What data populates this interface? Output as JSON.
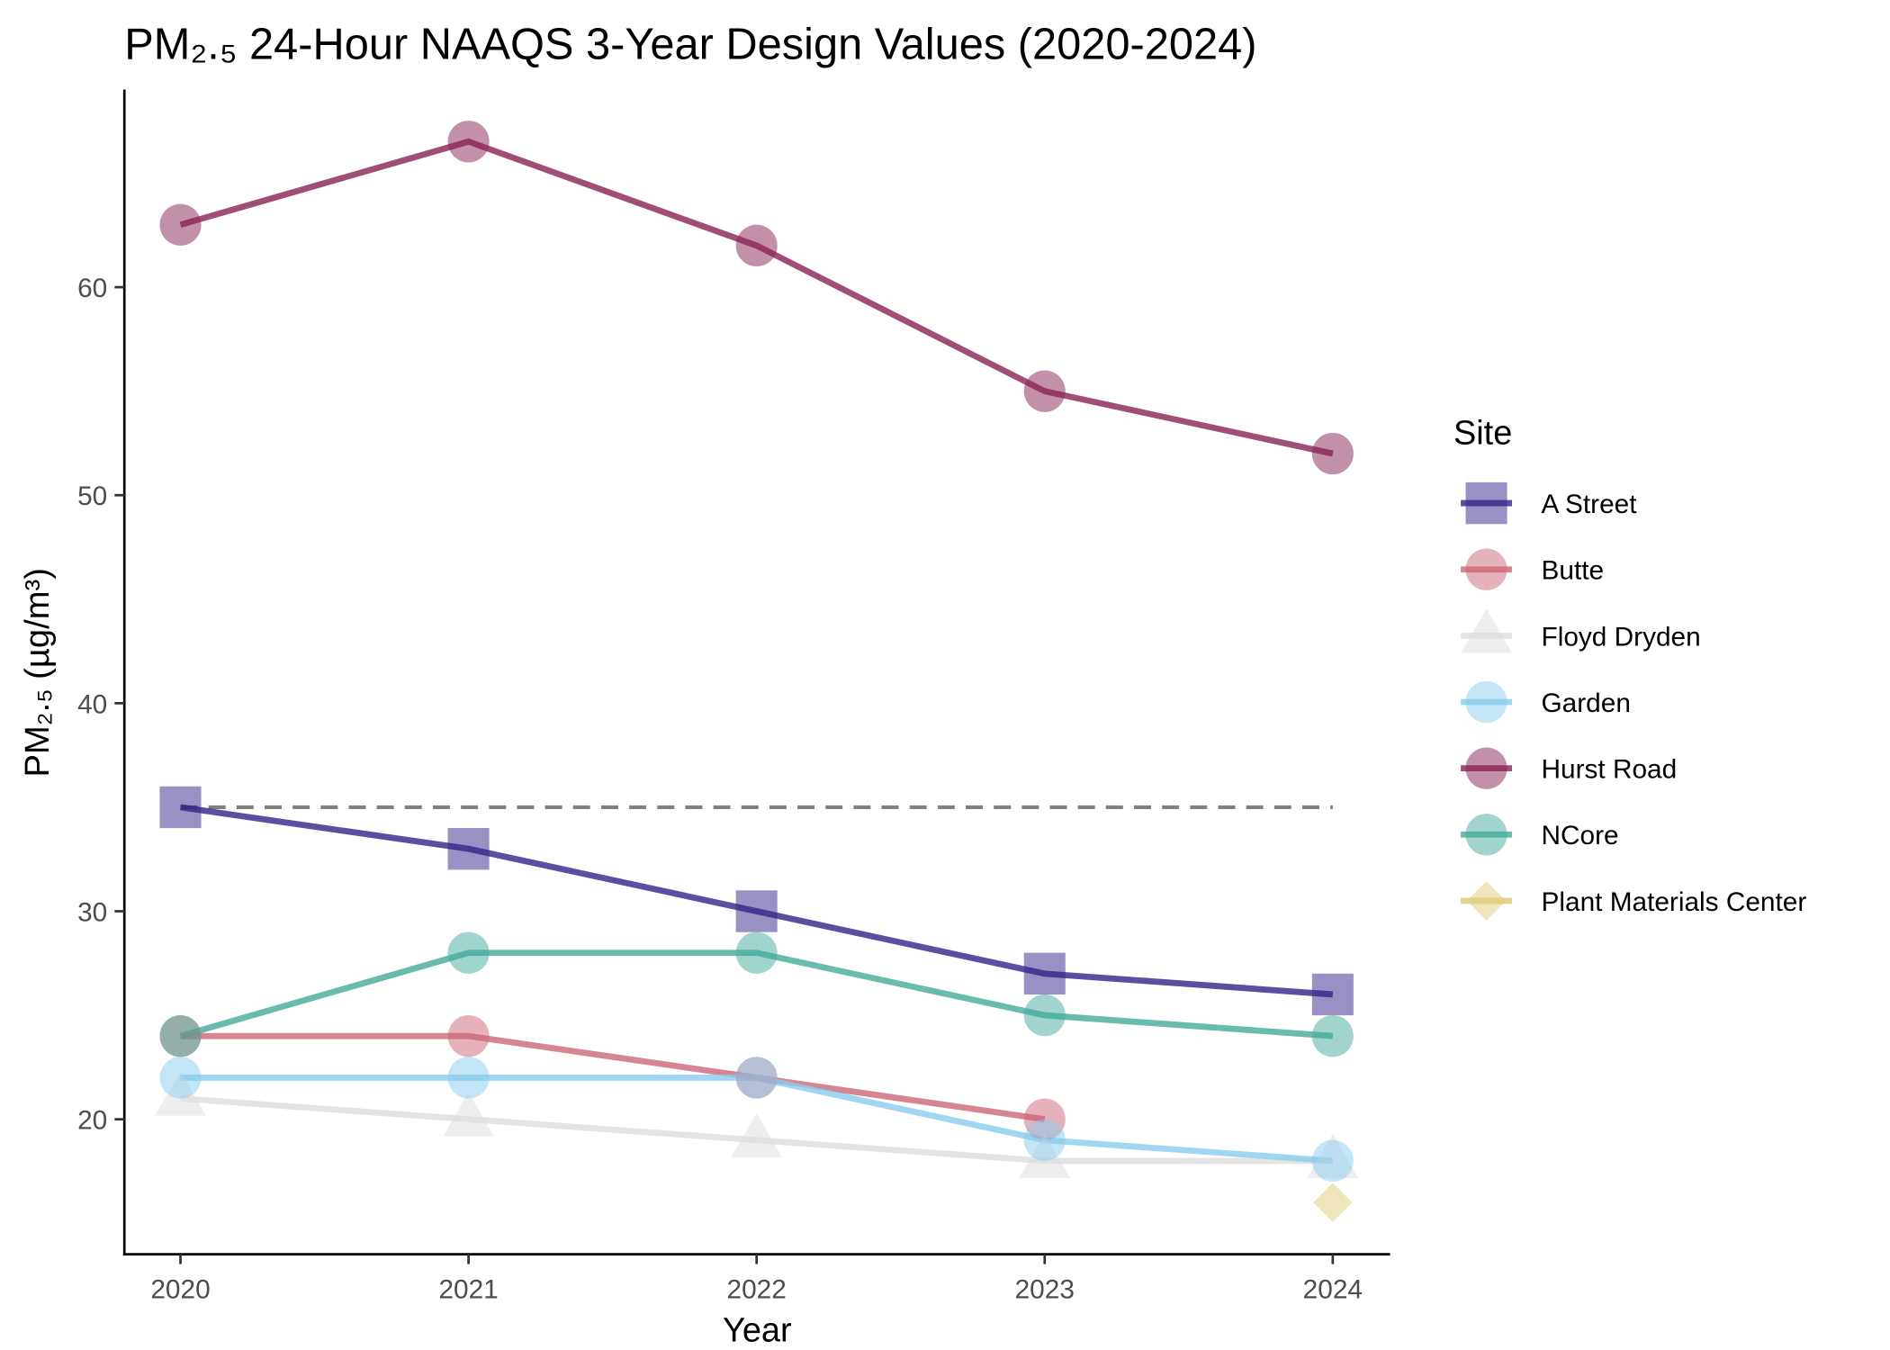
{
  "chart_data": {
    "type": "line",
    "title": "PM₂.₅ 24-Hour NAAQS 3-Year Design Values (2020-2024)",
    "xlabel": "Year",
    "ylabel": "PM₂.₅ (µg/m³)",
    "x": [
      2020,
      2021,
      2022,
      2023,
      2024
    ],
    "xticks": [
      "2020",
      "2021",
      "2022",
      "2023",
      "2024"
    ],
    "yticks": [
      20,
      30,
      40,
      50,
      60
    ],
    "ylim": [
      13.5,
      69.5
    ],
    "grid": false,
    "legend": {
      "title": "Site",
      "placement": "right"
    },
    "reference_line": {
      "y": 35,
      "style": "dashed",
      "color": "#808080"
    },
    "series": [
      {
        "name": "A Street",
        "values": [
          35,
          33,
          30,
          27,
          26
        ],
        "color": "#332288",
        "marker": "square"
      },
      {
        "name": "Butte",
        "values": [
          24,
          24,
          22,
          20,
          null
        ],
        "color": "#CC6677",
        "marker": "circle"
      },
      {
        "name": "Floyd Dryden",
        "values": [
          21,
          20,
          19,
          18,
          18
        ],
        "color": "#DDDDDD",
        "marker": "triangle"
      },
      {
        "name": "Garden",
        "values": [
          22,
          22,
          22,
          19,
          18
        ],
        "color": "#88CCEE",
        "marker": "circle"
      },
      {
        "name": "Hurst Road",
        "values": [
          63,
          67,
          62,
          55,
          52
        ],
        "color": "#882255",
        "marker": "circle"
      },
      {
        "name": "NCore",
        "values": [
          24,
          28,
          28,
          25,
          24
        ],
        "color": "#44AA99",
        "marker": "circle"
      },
      {
        "name": "Plant Materials Center",
        "values": [
          null,
          null,
          null,
          null,
          16
        ],
        "color": "#DDCC77",
        "marker": "diamond"
      }
    ]
  }
}
